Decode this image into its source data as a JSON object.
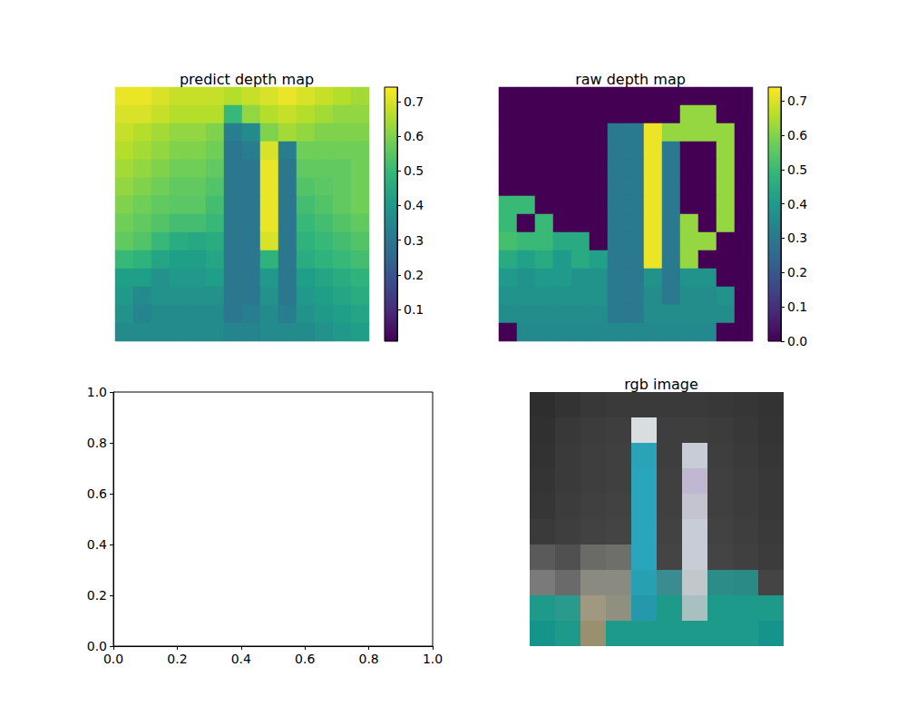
{
  "chart_data": [
    {
      "type": "heatmap",
      "title": "predict depth map",
      "tick_labels": false,
      "cells": [
        [
          0.72,
          0.72,
          0.7,
          0.68,
          0.68,
          0.68,
          0.66,
          0.68,
          0.7,
          0.72,
          0.7,
          0.68,
          0.66,
          0.64
        ],
        [
          0.7,
          0.7,
          0.68,
          0.66,
          0.66,
          0.66,
          0.5,
          0.62,
          0.66,
          0.68,
          0.66,
          0.64,
          0.62,
          0.62
        ],
        [
          0.68,
          0.66,
          0.64,
          0.62,
          0.62,
          0.6,
          0.32,
          0.36,
          0.6,
          0.64,
          0.62,
          0.6,
          0.6,
          0.6
        ],
        [
          0.66,
          0.64,
          0.62,
          0.6,
          0.6,
          0.58,
          0.3,
          0.32,
          0.7,
          0.32,
          0.58,
          0.58,
          0.58,
          0.58
        ],
        [
          0.64,
          0.62,
          0.6,
          0.58,
          0.58,
          0.56,
          0.3,
          0.3,
          0.72,
          0.3,
          0.56,
          0.56,
          0.56,
          0.58
        ],
        [
          0.62,
          0.6,
          0.58,
          0.56,
          0.56,
          0.54,
          0.3,
          0.3,
          0.72,
          0.3,
          0.54,
          0.55,
          0.56,
          0.58
        ],
        [
          0.6,
          0.58,
          0.56,
          0.55,
          0.55,
          0.52,
          0.3,
          0.3,
          0.72,
          0.3,
          0.52,
          0.54,
          0.56,
          0.58
        ],
        [
          0.58,
          0.56,
          0.54,
          0.52,
          0.52,
          0.5,
          0.3,
          0.3,
          0.72,
          0.3,
          0.5,
          0.52,
          0.54,
          0.56
        ],
        [
          0.56,
          0.54,
          0.5,
          0.46,
          0.45,
          0.46,
          0.3,
          0.3,
          0.7,
          0.3,
          0.48,
          0.5,
          0.52,
          0.54
        ],
        [
          0.5,
          0.48,
          0.44,
          0.42,
          0.42,
          0.44,
          0.3,
          0.3,
          0.48,
          0.3,
          0.46,
          0.48,
          0.5,
          0.52
        ],
        [
          0.42,
          0.42,
          0.38,
          0.4,
          0.4,
          0.42,
          0.3,
          0.3,
          0.4,
          0.3,
          0.42,
          0.44,
          0.46,
          0.48
        ],
        [
          0.4,
          0.36,
          0.38,
          0.38,
          0.38,
          0.38,
          0.3,
          0.3,
          0.38,
          0.3,
          0.4,
          0.42,
          0.44,
          0.46
        ],
        [
          0.38,
          0.34,
          0.36,
          0.36,
          0.36,
          0.36,
          0.3,
          0.32,
          0.36,
          0.32,
          0.38,
          0.4,
          0.42,
          0.44
        ],
        [
          0.36,
          0.36,
          0.36,
          0.36,
          0.36,
          0.36,
          0.34,
          0.34,
          0.36,
          0.36,
          0.36,
          0.38,
          0.4,
          0.42
        ]
      ],
      "colorbar": {
        "range": [
          0.008,
          0.742
        ],
        "ticks": [
          0.1,
          0.2,
          0.3,
          0.4,
          0.5,
          0.6,
          0.7
        ]
      }
    },
    {
      "type": "heatmap",
      "title": "raw depth map",
      "tick_labels": false,
      "cells": [
        [
          0,
          0,
          0,
          0,
          0,
          0,
          0,
          0,
          0,
          0,
          0,
          0,
          0,
          0
        ],
        [
          0,
          0,
          0,
          0,
          0,
          0,
          0,
          0,
          0,
          0,
          0.62,
          0.62,
          0,
          0
        ],
        [
          0,
          0,
          0,
          0,
          0,
          0,
          0.3,
          0.3,
          0.72,
          0.62,
          0.62,
          0.62,
          0.62,
          0
        ],
        [
          0,
          0,
          0,
          0,
          0,
          0,
          0.3,
          0.3,
          0.72,
          0.3,
          0,
          0,
          0.62,
          0
        ],
        [
          0,
          0,
          0,
          0,
          0,
          0,
          0.3,
          0.3,
          0.72,
          0.3,
          0,
          0,
          0.62,
          0
        ],
        [
          0,
          0,
          0,
          0,
          0,
          0,
          0.3,
          0.3,
          0.72,
          0.3,
          0,
          0,
          0.62,
          0
        ],
        [
          0.5,
          0.5,
          0,
          0,
          0,
          0,
          0.3,
          0.3,
          0.72,
          0.3,
          0,
          0,
          0.62,
          0
        ],
        [
          0.5,
          0,
          0.5,
          0,
          0,
          0,
          0.3,
          0.3,
          0.72,
          0.3,
          0.62,
          0,
          0.62,
          0
        ],
        [
          0.52,
          0.5,
          0.5,
          0.45,
          0.45,
          0,
          0.3,
          0.3,
          0.72,
          0.3,
          0.62,
          0.62,
          0,
          0
        ],
        [
          0.45,
          0.42,
          0.45,
          0.4,
          0.45,
          0.42,
          0.3,
          0.3,
          0.72,
          0.3,
          0.62,
          0,
          0,
          0
        ],
        [
          0.4,
          0.38,
          0.4,
          0.4,
          0.38,
          0.38,
          0.3,
          0.3,
          0.38,
          0.3,
          0.38,
          0.38,
          0,
          0
        ],
        [
          0.38,
          0.38,
          0.38,
          0.38,
          0.38,
          0.38,
          0.3,
          0.3,
          0.36,
          0.3,
          0.36,
          0.36,
          0.38,
          0
        ],
        [
          0.36,
          0.36,
          0.36,
          0.36,
          0.36,
          0.36,
          0.3,
          0.3,
          0.36,
          0.36,
          0.36,
          0.36,
          0.36,
          0
        ],
        [
          0,
          0.35,
          0.35,
          0.35,
          0.35,
          0.35,
          0.35,
          0.35,
          0.35,
          0.35,
          0.35,
          0.35,
          0,
          0
        ]
      ],
      "colorbar": {
        "range": [
          0,
          0.74
        ],
        "ticks": [
          {
            "value": 0,
            "label": "0.0"
          },
          0.1,
          0.2,
          0.3,
          0.4,
          0.5,
          0.6,
          0.7
        ]
      }
    },
    {
      "type": "axes",
      "xlim": [
        0,
        1
      ],
      "ylim": [
        0,
        1
      ],
      "xticks": [
        {
          "value": 0,
          "label": "0.0"
        },
        0.2,
        0.4,
        0.6,
        0.8,
        {
          "value": 1,
          "label": "1.0"
        }
      ],
      "yticks": [
        {
          "value": 0,
          "label": "0.0"
        },
        0.2,
        0.4,
        0.6,
        0.8,
        {
          "value": 1,
          "label": "1.0"
        }
      ]
    },
    {
      "type": "image",
      "title": "rgb image",
      "tick_labels": false,
      "pixels": [
        [
          "#2e2e2e",
          "#333333",
          "#383838",
          "#3a3a3a",
          "#3a3a3a",
          "#3a3a3a",
          "#3a3a3a",
          "#383838",
          "#363636",
          "#333333"
        ],
        [
          "#303030",
          "#383838",
          "#3c3c3c",
          "#3e3e3e",
          "#d8dde0",
          "#3e3e3e",
          "#3e3e3e",
          "#3c3c3c",
          "#383838",
          "#343434"
        ],
        [
          "#323232",
          "#3a3a3a",
          "#3e3e3e",
          "#404040",
          "#2aa2b8",
          "#3e3e3e",
          "#c8ccd4",
          "#3e3e3e",
          "#3a3a3a",
          "#363636"
        ],
        [
          "#343434",
          "#3a3a3a",
          "#3e3e3e",
          "#404040",
          "#2aa6bc",
          "#404040",
          "#c0b8d0",
          "#404040",
          "#3c3c3c",
          "#383838"
        ],
        [
          "#363636",
          "#3c3c3c",
          "#404040",
          "#424242",
          "#2aa6bc",
          "#404040",
          "#c4c4d0",
          "#404040",
          "#3c3c3c",
          "#383838"
        ],
        [
          "#3a3a3a",
          "#3e3e3e",
          "#424242",
          "#444444",
          "#2aa6bc",
          "#424242",
          "#c8ccd4",
          "#424242",
          "#3e3e3e",
          "#3a3a3a"
        ],
        [
          "#5a5a5a",
          "#505050",
          "#6a6a66",
          "#6e6e6a",
          "#2aa6bc",
          "#444444",
          "#c8ccd4",
          "#444444",
          "#404040",
          "#3c3c3c"
        ],
        [
          "#7a7a7a",
          "#6a6a6a",
          "#8a8a80",
          "#8a8a80",
          "#28a0b4",
          "#3a8c90",
          "#c0c8cc",
          "#2c8c88",
          "#2a8a86",
          "#444444"
        ],
        [
          "#1e9a8a",
          "#2a9a8c",
          "#a09880",
          "#909080",
          "#2698ac",
          "#1e9a8a",
          "#a8c0c0",
          "#1e9a8a",
          "#1e9a8a",
          "#1e9a8a"
        ],
        [
          "#14948a",
          "#1e9a8a",
          "#9a9070",
          "#1e9a8a",
          "#1e9a8a",
          "#1e9a8a",
          "#1e9a8a",
          "#1e9a8a",
          "#1e9a8a",
          "#14948a"
        ]
      ]
    }
  ]
}
